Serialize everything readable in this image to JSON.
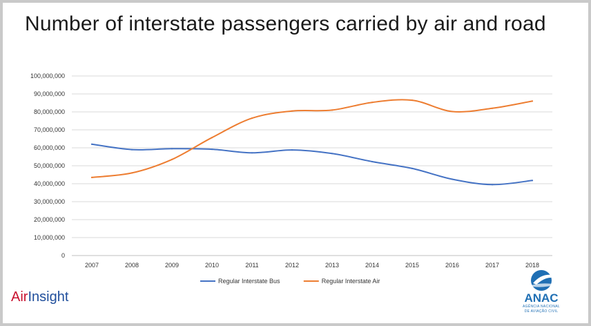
{
  "chart_data": {
    "type": "line",
    "title": "Number of interstate passengers carried by air and road",
    "categories": [
      "2007",
      "2008",
      "2009",
      "2010",
      "2011",
      "2012",
      "2013",
      "2014",
      "2015",
      "2016",
      "2017",
      "2018"
    ],
    "series": [
      {
        "name": "Regular Interstate Bus",
        "color": "#4472c4",
        "values": [
          62000000,
          59000000,
          59500000,
          59200000,
          57200000,
          58800000,
          56800000,
          52300000,
          48500000,
          42500000,
          39500000,
          41800000
        ]
      },
      {
        "name": "Regular Interstate Air",
        "color": "#ed7d31",
        "values": [
          43500000,
          46000000,
          53500000,
          65700000,
          76500000,
          80500000,
          81000000,
          85300000,
          86500000,
          80200000,
          82000000,
          86000000
        ]
      }
    ],
    "ylim": [
      0,
      100000000
    ],
    "yticks": [
      0,
      10000000,
      20000000,
      30000000,
      40000000,
      50000000,
      60000000,
      70000000,
      80000000,
      90000000,
      100000000
    ],
    "ytick_labels": [
      "0",
      "10,000,000",
      "20,000,000",
      "30,000,000",
      "40,000,000",
      "50,000,000",
      "60,000,000",
      "70,000,000",
      "80,000,000",
      "90,000,000",
      "100,000,000"
    ],
    "grid": true,
    "legend_position": "bottom",
    "xlabel": "",
    "ylabel": ""
  },
  "branding": {
    "left_logo_part1": "Air",
    "left_logo_part2": "Insight",
    "right_logo_word": "ANAC",
    "right_logo_sub1": "AGÊNCIA NACIONAL",
    "right_logo_sub2": "DE AVIAÇÃO CIVIL",
    "air_color": "#c8102e",
    "insight_color": "#1f4e9c",
    "anac_color": "#1f6fb4"
  }
}
